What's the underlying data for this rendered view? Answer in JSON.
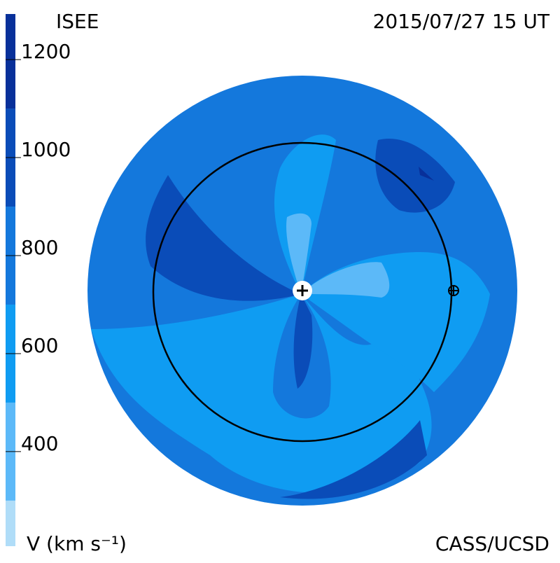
{
  "header": {
    "left": "ISEE",
    "right": "2015/07/27 15 UT"
  },
  "footer": {
    "left": "V (km s⁻¹)",
    "right": "CASS/UCSD"
  },
  "colorbar": {
    "lim": [
      207,
      1293
    ],
    "ticks": [
      400,
      600,
      800,
      1000,
      1200
    ],
    "bounds": [
      207,
      300,
      500,
      700,
      900,
      1100,
      1293
    ],
    "colors": [
      "#b0ddf8",
      "#5cb9f8",
      "#0f9cf2",
      "#1478dc",
      "#0a4cb8",
      "#08309a",
      "#000f4a"
    ]
  }
}
